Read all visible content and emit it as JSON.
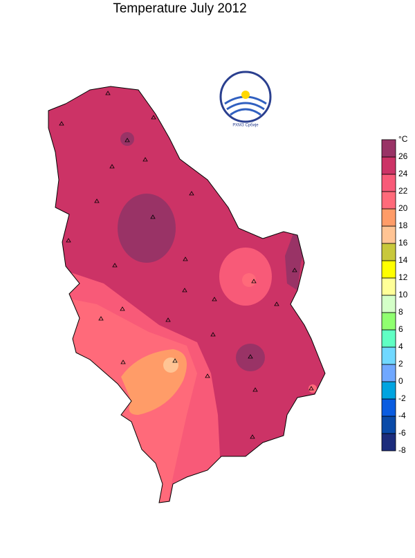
{
  "title": "Temperature  July  2012",
  "logo_text": "РХМЗ Србије",
  "legend": {
    "unit": "°C",
    "ticks": [
      -8,
      -6,
      -4,
      -2,
      0,
      2,
      4,
      6,
      8,
      10,
      12,
      14,
      16,
      18,
      20,
      22,
      24,
      26
    ],
    "colors": [
      "#1c2c7c",
      "#0a4aa8",
      "#0a5ce0",
      "#00a4e0",
      "#70a8ff",
      "#70d8ff",
      "#60ffc4",
      "#90ff70",
      "#d4ffc8",
      "#ffff98",
      "#ffff00",
      "#c8c83c",
      "#ffc494",
      "#ff9c68",
      "#ff6a7a",
      "#f85a78",
      "#cc3366",
      "#993366"
    ]
  }
}
